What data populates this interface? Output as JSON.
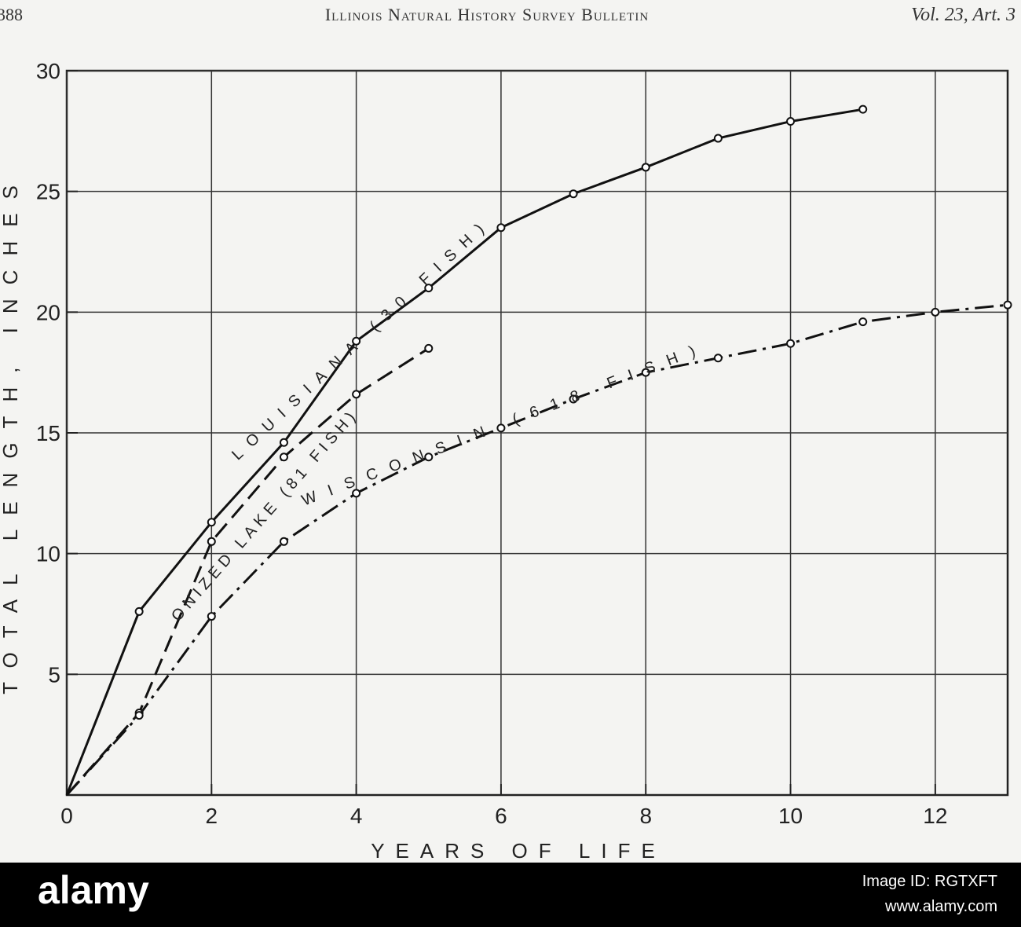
{
  "header": {
    "page": "388",
    "title": "Illinois Natural History Survey Bulletin",
    "volume": "Vol. 23, Art. 3"
  },
  "chart_data": {
    "type": "line",
    "xlabel": "YEARS OF LIFE",
    "ylabel": "TOTAL LENGTH, INCHES",
    "xlim": [
      0,
      13
    ],
    "ylim": [
      0,
      30
    ],
    "xticks": [
      0,
      2,
      4,
      6,
      8,
      10,
      12
    ],
    "yticks": [
      5,
      10,
      15,
      20,
      25,
      30
    ],
    "grid": true,
    "color": "#111111",
    "series": [
      {
        "name": "LOUISIANA (30 FISH)",
        "line_style": "solid",
        "x": [
          0,
          1,
          2,
          3,
          4,
          5,
          6,
          7,
          8,
          9,
          10,
          11
        ],
        "values": [
          0,
          7.6,
          11.3,
          14.6,
          18.8,
          21,
          23.5,
          24.9,
          26,
          27.2,
          27.9,
          28.4
        ]
      },
      {
        "name": "ONIZED LAKE (81 FISH)",
        "line_style": "dashed",
        "x": [
          0,
          1,
          2,
          3,
          4,
          5
        ],
        "values": [
          0,
          3.4,
          10.5,
          14,
          16.6,
          18.5
        ]
      },
      {
        "name": "WISCONSIN (618 FISH)",
        "line_style": "dashdot",
        "x": [
          0,
          1,
          2,
          3,
          4,
          5,
          6,
          7,
          8,
          9,
          10,
          11,
          12,
          13
        ],
        "values": [
          0,
          3.3,
          7.4,
          10.5,
          12.5,
          14,
          15.2,
          16.4,
          17.5,
          18.1,
          18.7,
          19.6,
          20,
          20.3
        ]
      }
    ]
  },
  "banner": {
    "brand": "alamy",
    "image_id": "Image ID: RGTXFT",
    "url": "www.alamy.com"
  }
}
